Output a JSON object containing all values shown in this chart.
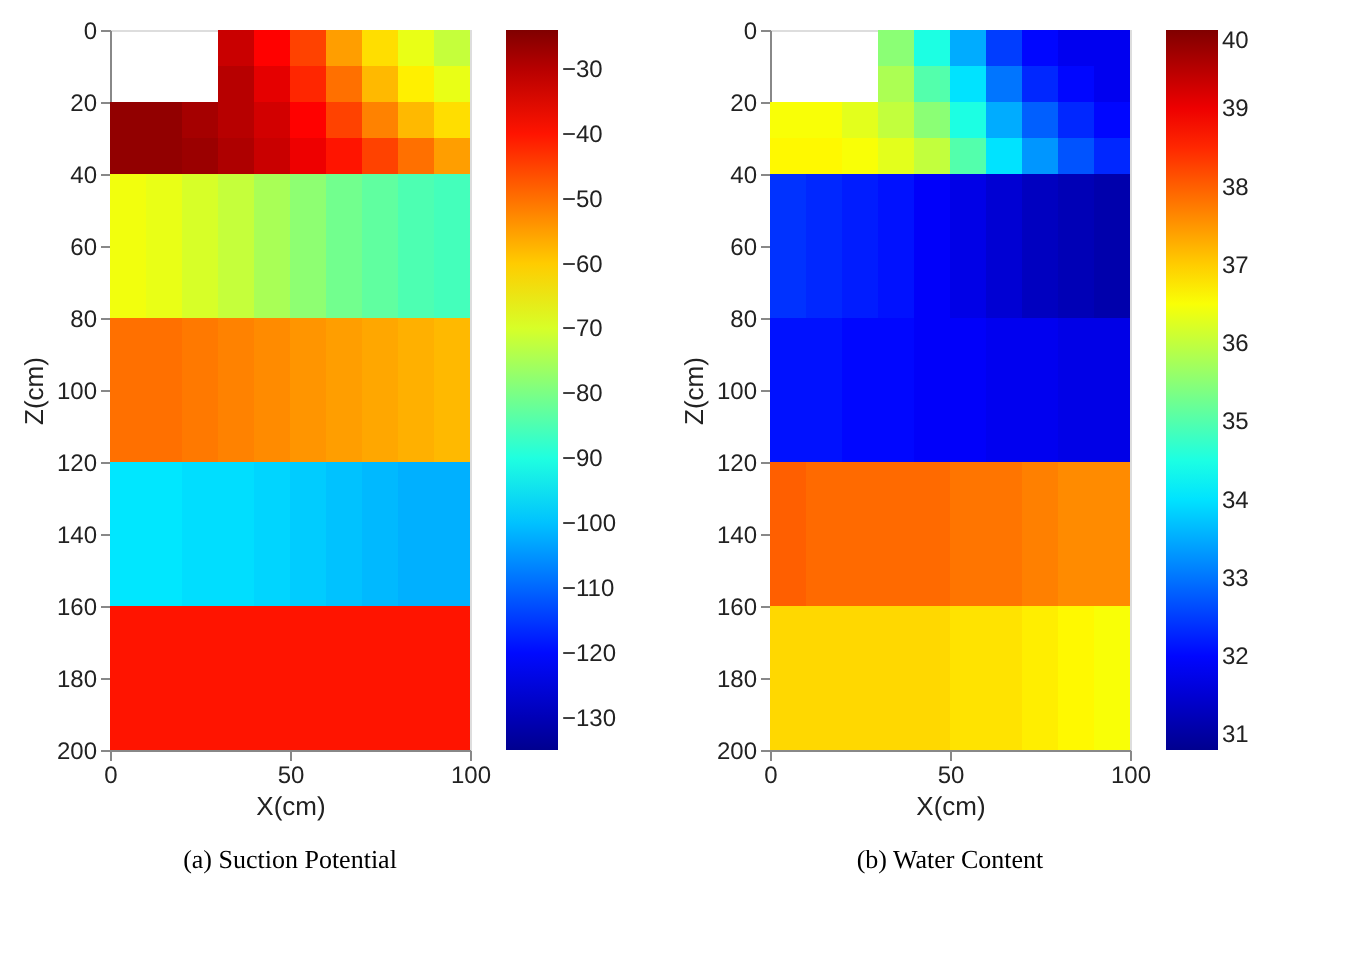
{
  "chart_data": [
    {
      "type": "heatmap",
      "title": "(a) Suction Potential",
      "xlabel": "X(cm)",
      "ylabel": "Z(cm)",
      "x": [
        5,
        15,
        25,
        35,
        45,
        55,
        65,
        75,
        85,
        95
      ],
      "y": [
        5,
        15,
        25,
        35,
        45,
        55,
        65,
        75,
        85,
        95,
        105,
        115,
        125,
        135,
        145,
        155,
        165,
        175,
        185,
        195
      ],
      "xlim": [
        0,
        100
      ],
      "xticks": [
        0,
        50,
        100
      ],
      "ylim": [
        200,
        0
      ],
      "yticks": [
        0,
        20,
        40,
        60,
        80,
        100,
        120,
        140,
        160,
        180,
        200
      ],
      "clim": [
        -135,
        -24
      ],
      "cticks": [
        -30,
        -40,
        -50,
        -60,
        -70,
        -80,
        -90,
        -100,
        -110,
        -120,
        -130
      ],
      "cells": [
        [
          null,
          null,
          null,
          -32,
          -38,
          -45,
          -55,
          -62,
          -68,
          -72
        ],
        [
          null,
          null,
          null,
          -30,
          -35,
          -42,
          -50,
          -58,
          -64,
          -68
        ],
        [
          -26,
          -26,
          -28,
          -30,
          -33,
          -38,
          -45,
          -52,
          -58,
          -62
        ],
        [
          -26,
          -26,
          -27,
          -29,
          -32,
          -36,
          -40,
          -45,
          -50,
          -55
        ],
        [
          -67,
          -68,
          -70,
          -72,
          -75,
          -78,
          -81,
          -83,
          -85,
          -86
        ],
        [
          -67,
          -68,
          -70,
          -72,
          -75,
          -78,
          -81,
          -83,
          -85,
          -86
        ],
        [
          -67,
          -68,
          -70,
          -72,
          -75,
          -78,
          -81,
          -83,
          -85,
          -86
        ],
        [
          -67,
          -68,
          -70,
          -72,
          -75,
          -78,
          -81,
          -83,
          -85,
          -86
        ],
        [
          -50,
          -50,
          -51,
          -52,
          -53,
          -54,
          -55,
          -56,
          -57,
          -58
        ],
        [
          -50,
          -50,
          -51,
          -52,
          -53,
          -54,
          -55,
          -56,
          -57,
          -58
        ],
        [
          -50,
          -50,
          -51,
          -52,
          -53,
          -54,
          -55,
          -56,
          -57,
          -58
        ],
        [
          -50,
          -50,
          -51,
          -52,
          -53,
          -54,
          -55,
          -56,
          -57,
          -58
        ],
        [
          -96,
          -96,
          -97,
          -97,
          -98,
          -99,
          -100,
          -101,
          -102,
          -102
        ],
        [
          -96,
          -96,
          -97,
          -97,
          -98,
          -99,
          -100,
          -101,
          -102,
          -102
        ],
        [
          -96,
          -96,
          -97,
          -97,
          -98,
          -99,
          -100,
          -101,
          -102,
          -102
        ],
        [
          -96,
          -96,
          -97,
          -97,
          -98,
          -99,
          -100,
          -101,
          -102,
          -102
        ],
        [
          -40,
          -40,
          -40,
          -40,
          -40,
          -40,
          -40,
          -40,
          -40,
          -40
        ],
        [
          -40,
          -40,
          -40,
          -40,
          -40,
          -40,
          -40,
          -40,
          -40,
          -40
        ],
        [
          -40,
          -40,
          -40,
          -40,
          -40,
          -40,
          -40,
          -40,
          -40,
          -40
        ],
        [
          -40,
          -40,
          -40,
          -40,
          -40,
          -40,
          -40,
          -40,
          -40,
          -40
        ]
      ]
    },
    {
      "type": "heatmap",
      "title": "(b) Water Content",
      "xlabel": "X(cm)",
      "ylabel": "Z(cm)",
      "x": [
        5,
        15,
        25,
        35,
        45,
        55,
        65,
        75,
        85,
        95
      ],
      "y": [
        5,
        15,
        25,
        35,
        45,
        55,
        65,
        75,
        85,
        95,
        105,
        115,
        125,
        135,
        145,
        155,
        165,
        175,
        185,
        195
      ],
      "xlim": [
        0,
        100
      ],
      "xticks": [
        0,
        50,
        100
      ],
      "ylim": [
        200,
        0
      ],
      "yticks": [
        0,
        20,
        40,
        60,
        80,
        100,
        120,
        140,
        160,
        180,
        200
      ],
      "clim": [
        30.8,
        40
      ],
      "cticks": [
        31,
        32,
        33,
        34,
        35,
        36,
        37,
        38,
        39,
        40
      ],
      "cells": [
        [
          null,
          null,
          null,
          35.5,
          34.5,
          33.5,
          32.5,
          32,
          31.8,
          31.8
        ],
        [
          null,
          null,
          null,
          35.8,
          35,
          34,
          33,
          32.3,
          32,
          31.8
        ],
        [
          36.5,
          36.5,
          36.3,
          36,
          35.5,
          34.5,
          33.5,
          32.8,
          32.3,
          32
        ],
        [
          36.6,
          36.6,
          36.5,
          36.3,
          36,
          35,
          34,
          33.3,
          32.7,
          32.3
        ],
        [
          32.4,
          32.3,
          32.2,
          32.1,
          31.9,
          31.7,
          31.5,
          31.3,
          31.2,
          31.1
        ],
        [
          32.4,
          32.3,
          32.2,
          32.1,
          31.9,
          31.7,
          31.5,
          31.3,
          31.2,
          31.1
        ],
        [
          32.4,
          32.3,
          32.2,
          32.1,
          31.9,
          31.7,
          31.5,
          31.3,
          31.2,
          31.1
        ],
        [
          32.4,
          32.3,
          32.2,
          32.1,
          31.9,
          31.7,
          31.5,
          31.3,
          31.2,
          31.1
        ],
        [
          32.1,
          32.1,
          32,
          32,
          31.9,
          31.9,
          31.8,
          31.8,
          31.7,
          31.7
        ],
        [
          32.1,
          32.1,
          32,
          32,
          31.9,
          31.9,
          31.8,
          31.8,
          31.7,
          31.7
        ],
        [
          32.1,
          32.1,
          32,
          32,
          31.9,
          31.9,
          31.8,
          31.8,
          31.7,
          31.7
        ],
        [
          32.1,
          32.1,
          32,
          32,
          31.9,
          31.9,
          31.8,
          31.8,
          31.7,
          31.7
        ],
        [
          38,
          37.9,
          37.9,
          37.9,
          37.9,
          37.8,
          37.8,
          37.7,
          37.6,
          37.6
        ],
        [
          38,
          37.9,
          37.9,
          37.9,
          37.9,
          37.8,
          37.8,
          37.7,
          37.6,
          37.6
        ],
        [
          38,
          37.9,
          37.9,
          37.9,
          37.9,
          37.8,
          37.8,
          37.7,
          37.6,
          37.6
        ],
        [
          38,
          37.9,
          37.9,
          37.9,
          37.9,
          37.8,
          37.8,
          37.7,
          37.6,
          37.6
        ],
        [
          36.9,
          36.9,
          36.9,
          36.9,
          36.9,
          36.8,
          36.8,
          36.7,
          36.6,
          36.5
        ],
        [
          36.9,
          36.9,
          36.9,
          36.9,
          36.9,
          36.8,
          36.8,
          36.7,
          36.6,
          36.5
        ],
        [
          36.9,
          36.9,
          36.9,
          36.9,
          36.9,
          36.8,
          36.8,
          36.7,
          36.6,
          36.5
        ],
        [
          36.9,
          36.9,
          36.9,
          36.9,
          36.9,
          36.8,
          36.8,
          36.7,
          36.6,
          36.5
        ]
      ]
    }
  ]
}
